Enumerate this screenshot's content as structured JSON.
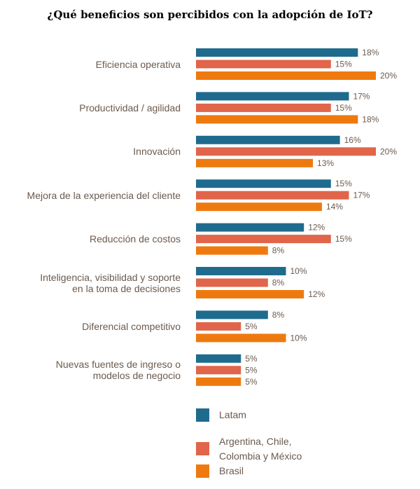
{
  "chart_data": {
    "type": "bar",
    "orientation": "horizontal",
    "title": "¿Qué beneficios son percibidos con la adopción de IoT?",
    "categories": [
      "Eficiencia operativa",
      "Productividad / agilidad",
      "Innovación",
      "Mejora de la experiencia del cliente",
      "Reducción de costos",
      "Inteligencia, visibilidad y soporte en la toma de decisiones",
      "Diferencial competitivo",
      "Nuevas fuentes de ingreso o modelos de negocio"
    ],
    "category_lines": [
      [
        "Eficiencia operativa"
      ],
      [
        "Productividad / agilidad"
      ],
      [
        "Innovación"
      ],
      [
        "Mejora de la experiencia del cliente"
      ],
      [
        "Reducción de costos"
      ],
      [
        "Inteligencia, visibilidad y soporte",
        "en la toma de decisiones"
      ],
      [
        "Diferencial competitivo"
      ],
      [
        "Nuevas fuentes de ingreso o",
        "modelos de negocio"
      ]
    ],
    "series": [
      {
        "name": "Latam",
        "color": "#1f6b8e",
        "values": [
          18,
          17,
          16,
          15,
          12,
          10,
          8,
          5
        ]
      },
      {
        "name": "Argentina, Chile, Colombia y México",
        "color": "#e0654a",
        "values": [
          15,
          15,
          20,
          17,
          15,
          8,
          5,
          5
        ]
      },
      {
        "name": "Brasil",
        "color": "#ee7a0f",
        "values": [
          20,
          18,
          13,
          14,
          8,
          12,
          10,
          5
        ]
      }
    ],
    "value_suffix": "%",
    "xlim": [
      0,
      20
    ],
    "grid": false,
    "legend_position": "bottom"
  },
  "legend": {
    "items": [
      {
        "lines": [
          "Latam"
        ],
        "color": "#1f6b8e"
      },
      {
        "lines": [
          "Argentina, Chile,",
          "Colombia y México"
        ],
        "color": "#e0654a"
      },
      {
        "lines": [
          "Brasil"
        ],
        "color": "#ee7a0f"
      }
    ]
  }
}
